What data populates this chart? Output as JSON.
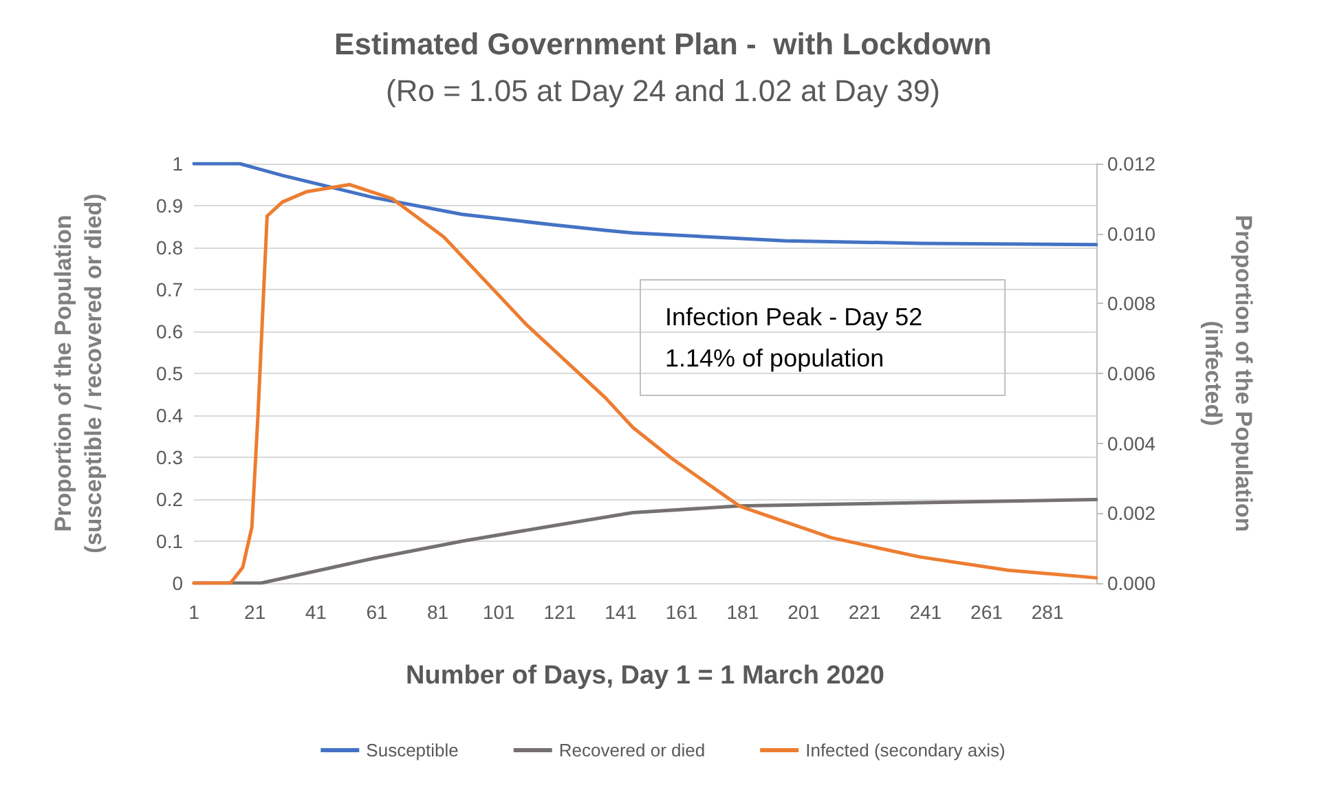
{
  "chart_data": {
    "type": "line",
    "title": "Estimated Government Plan -  with Lockdown",
    "subtitle": "(Ro = 1.05 at Day 24 and 1.02 at Day 39)",
    "xlabel": "Number of Days, Day 1 = 1 March 2020",
    "ylabel": "Proportion of the Population\n(susceptible / recovered or died)",
    "y2label": "Proportion of the Population\n(infected)",
    "annotations": [
      "Infection Peak - Day 52\n1.14% of population"
    ],
    "xlim": [
      1,
      297
    ],
    "xticks": [
      1,
      21,
      41,
      61,
      81,
      101,
      121,
      141,
      161,
      181,
      201,
      221,
      241,
      261,
      281
    ],
    "ylim": [
      0,
      1
    ],
    "yticks": [
      0,
      0.1,
      0.2,
      0.3,
      0.4,
      0.5,
      0.6,
      0.7,
      0.8,
      0.9,
      1
    ],
    "y2lim": [
      0,
      0.012
    ],
    "y2ticks": [
      {
        "value": 0,
        "label": "0.000"
      },
      {
        "value": 0.002,
        "label": "0.002"
      },
      {
        "value": 0.004,
        "label": "0.004"
      },
      {
        "value": 0.006,
        "label": "0.006"
      },
      {
        "value": 0.008,
        "label": "0.008"
      },
      {
        "value": 0.01,
        "label": "0.010"
      },
      0.012
    ],
    "grid": "y",
    "legend": "bottom",
    "marker": "none",
    "line_style": "solid",
    "series": [
      {
        "name": "Susceptible",
        "color": "#4472c4",
        "x": [
          1,
          16,
          21,
          30,
          60,
          89,
          119,
          136,
          145,
          195,
          240,
          297
        ],
        "values": [
          1,
          1,
          0.99,
          0.972,
          0.919,
          0.879,
          0.854,
          0.841,
          0.835,
          0.816,
          0.81,
          0.807
        ]
      },
      {
        "name": "Recovered or died",
        "color": "#767171",
        "x": [
          1,
          23,
          60,
          89,
          119,
          145,
          180,
          240,
          297
        ],
        "values": [
          0,
          0,
          0.059,
          0.1,
          0.137,
          0.168,
          0.184,
          0.192,
          0.199
        ]
      },
      {
        "name": "Infected (secondary axis)",
        "color": "#ed7d31",
        "axis": "y2",
        "x": [
          1,
          13,
          17,
          20,
          22,
          25,
          30,
          38,
          52,
          66,
          83,
          110,
          136,
          145,
          158,
          180,
          210,
          239,
          268,
          297
        ],
        "values": [
          0,
          0,
          0.00045,
          0.0016,
          0.0048,
          0.0105,
          0.0109,
          0.0112,
          0.0114,
          0.011,
          0.0099,
          0.0074,
          0.0053,
          0.00445,
          0.00355,
          0.0022,
          0.0013,
          0.00075,
          0.00037,
          0.00015
        ]
      }
    ]
  }
}
